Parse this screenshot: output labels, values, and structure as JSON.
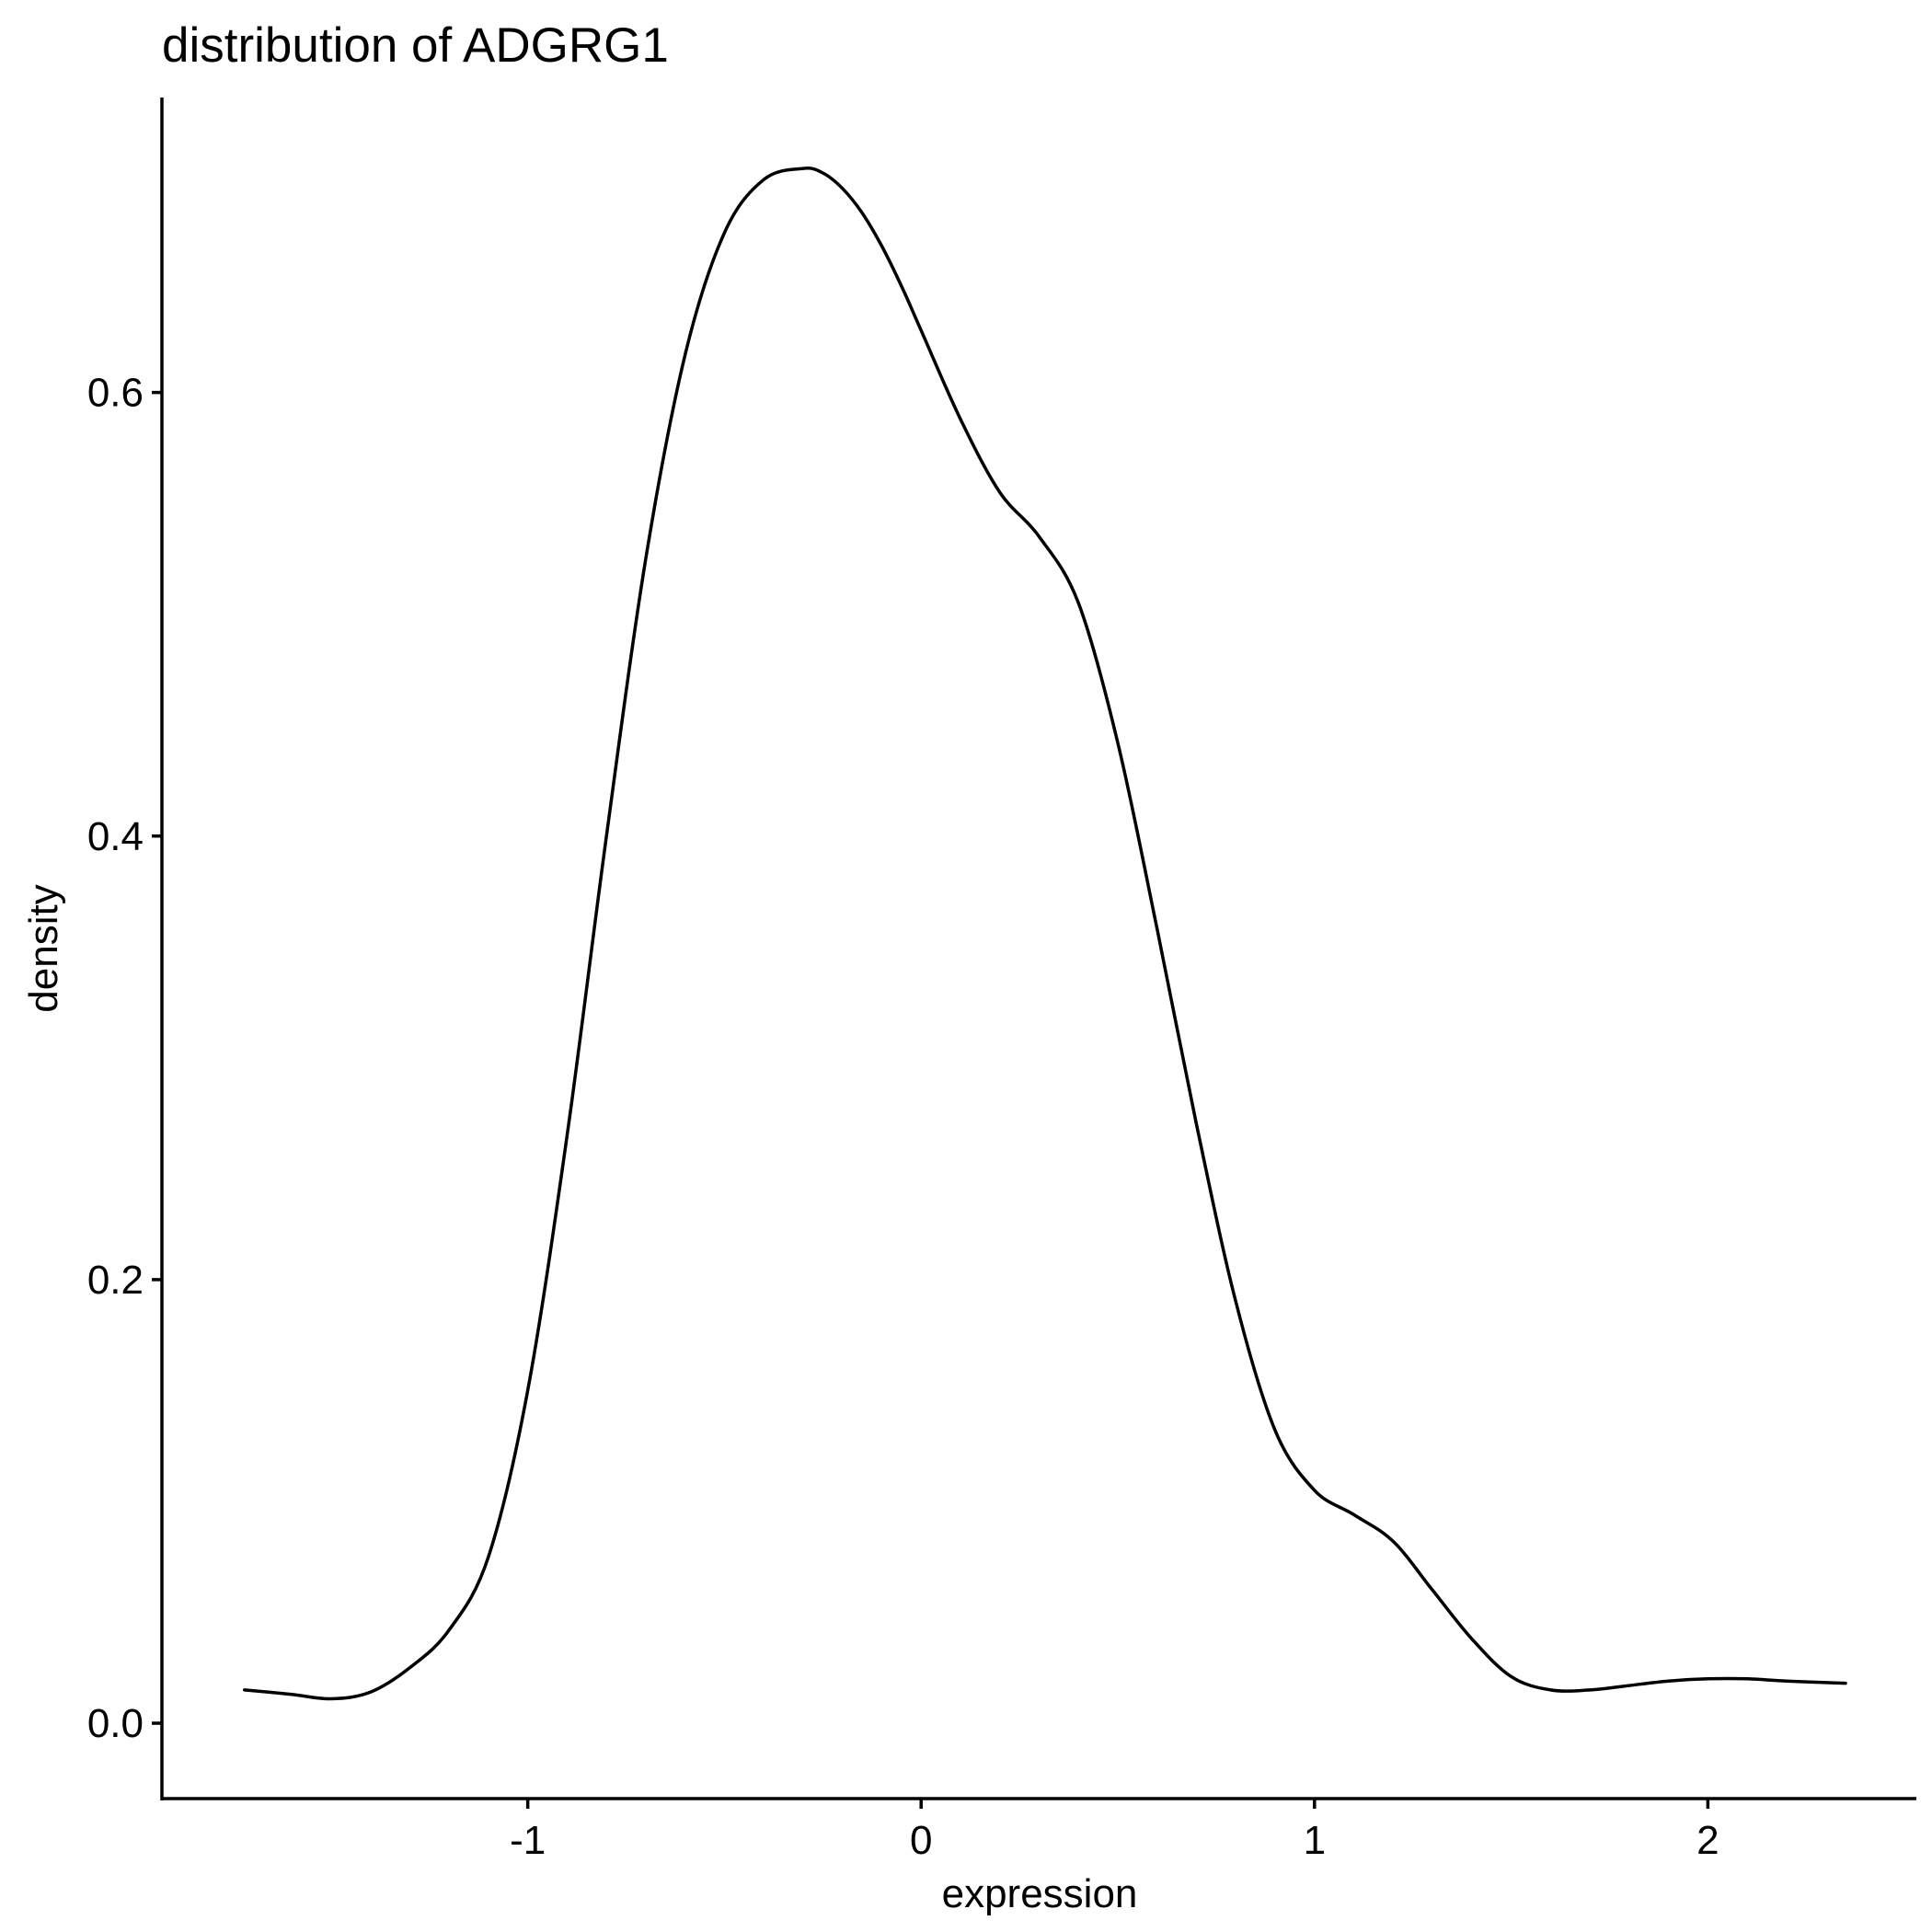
{
  "chart_data": {
    "type": "line",
    "title": "distribution of ADGRG1",
    "xlabel": "expression",
    "ylabel": "density",
    "xlim": [
      -1.93,
      2.53
    ],
    "ylim": [
      -0.034,
      0.733
    ],
    "x_ticks": [
      {
        "value": -1,
        "label": "-1"
      },
      {
        "value": 0,
        "label": "0"
      },
      {
        "value": 1,
        "label": "1"
      },
      {
        "value": 2,
        "label": "2"
      }
    ],
    "y_ticks": [
      {
        "value": 0.0,
        "label": "0.0"
      },
      {
        "value": 0.2,
        "label": "0.2"
      },
      {
        "value": 0.4,
        "label": "0.4"
      },
      {
        "value": 0.6,
        "label": "0.6"
      }
    ],
    "grid": false,
    "legend": "none",
    "line_color": "#000000",
    "series": [
      {
        "x": [
          -1.72,
          -1.6,
          -1.5,
          -1.4,
          -1.3,
          -1.2,
          -1.1,
          -1.0,
          -0.9,
          -0.8,
          -0.7,
          -0.6,
          -0.5,
          -0.4,
          -0.3,
          -0.25,
          -0.2,
          -0.15,
          -0.1,
          -0.05,
          0.0,
          0.1,
          0.2,
          0.3,
          0.4,
          0.5,
          0.6,
          0.7,
          0.8,
          0.9,
          1.0,
          1.1,
          1.2,
          1.3,
          1.4,
          1.5,
          1.6,
          1.7,
          1.8,
          1.9,
          2.0,
          2.1,
          2.2,
          2.35
        ],
        "y": [
          0.015,
          0.013,
          0.011,
          0.014,
          0.025,
          0.042,
          0.075,
          0.15,
          0.265,
          0.4,
          0.525,
          0.617,
          0.672,
          0.696,
          0.701,
          0.699,
          0.692,
          0.681,
          0.666,
          0.648,
          0.628,
          0.588,
          0.555,
          0.535,
          0.505,
          0.442,
          0.358,
          0.27,
          0.19,
          0.132,
          0.105,
          0.094,
          0.082,
          0.06,
          0.038,
          0.021,
          0.015,
          0.015,
          0.017,
          0.019,
          0.02,
          0.02,
          0.019,
          0.018
        ]
      }
    ]
  }
}
